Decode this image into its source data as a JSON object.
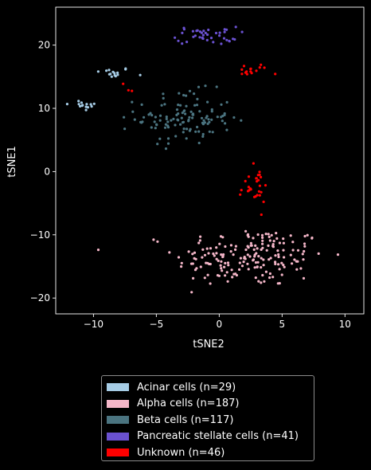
{
  "chart_data": {
    "type": "scatter",
    "title": "",
    "xlabel": "tSNE2",
    "ylabel": "tSNE1",
    "xlim": [
      -13,
      11.5
    ],
    "ylim": [
      -22.5,
      26
    ],
    "xticks": [
      -10,
      -5,
      0,
      5,
      10
    ],
    "yticks": [
      -20,
      -10,
      0,
      10,
      20
    ],
    "grid": false,
    "legend_placement": "below",
    "series": [
      {
        "name": "Acinar cells (n=29)",
        "color": "#a6cce5",
        "clusters": [
          {
            "cx": -8.5,
            "cy": 15.6,
            "sx": 0.8,
            "sy": 0.45,
            "n": 15
          },
          {
            "cx": -10.8,
            "cy": 10.5,
            "sx": 0.7,
            "sy": 0.45,
            "n": 14
          }
        ]
      },
      {
        "name": "Alpha cells (n=187)",
        "color": "#f4b6c8",
        "clusters": [
          {
            "cx": 2.5,
            "cy": -13.5,
            "sx": 3.0,
            "sy": 2.4,
            "n": 187
          }
        ]
      },
      {
        "name": "Beta cells (n=117)",
        "color": "#4b7480",
        "clusters": [
          {
            "cx": -2.8,
            "cy": 8.5,
            "sx": 1.9,
            "sy": 2.1,
            "n": 117
          }
        ]
      },
      {
        "name": "Pancreatic stellate cells (n=41)",
        "color": "#6a51d0",
        "clusters": [
          {
            "cx": -1.0,
            "cy": 21.5,
            "sx": 1.2,
            "sy": 0.7,
            "n": 41
          }
        ]
      },
      {
        "name": "Unknown (n=46)",
        "color": "#ff0000",
        "clusters": [
          {
            "cx": 2.8,
            "cy": -2.5,
            "sx": 0.6,
            "sy": 1.5,
            "n": 28
          },
          {
            "cx": 2.5,
            "cy": 16.0,
            "sx": 0.7,
            "sy": 0.5,
            "n": 15
          },
          {
            "cx": -7.5,
            "cy": 13.5,
            "sx": 0.4,
            "sy": 2.5,
            "n": 3
          }
        ]
      }
    ]
  }
}
